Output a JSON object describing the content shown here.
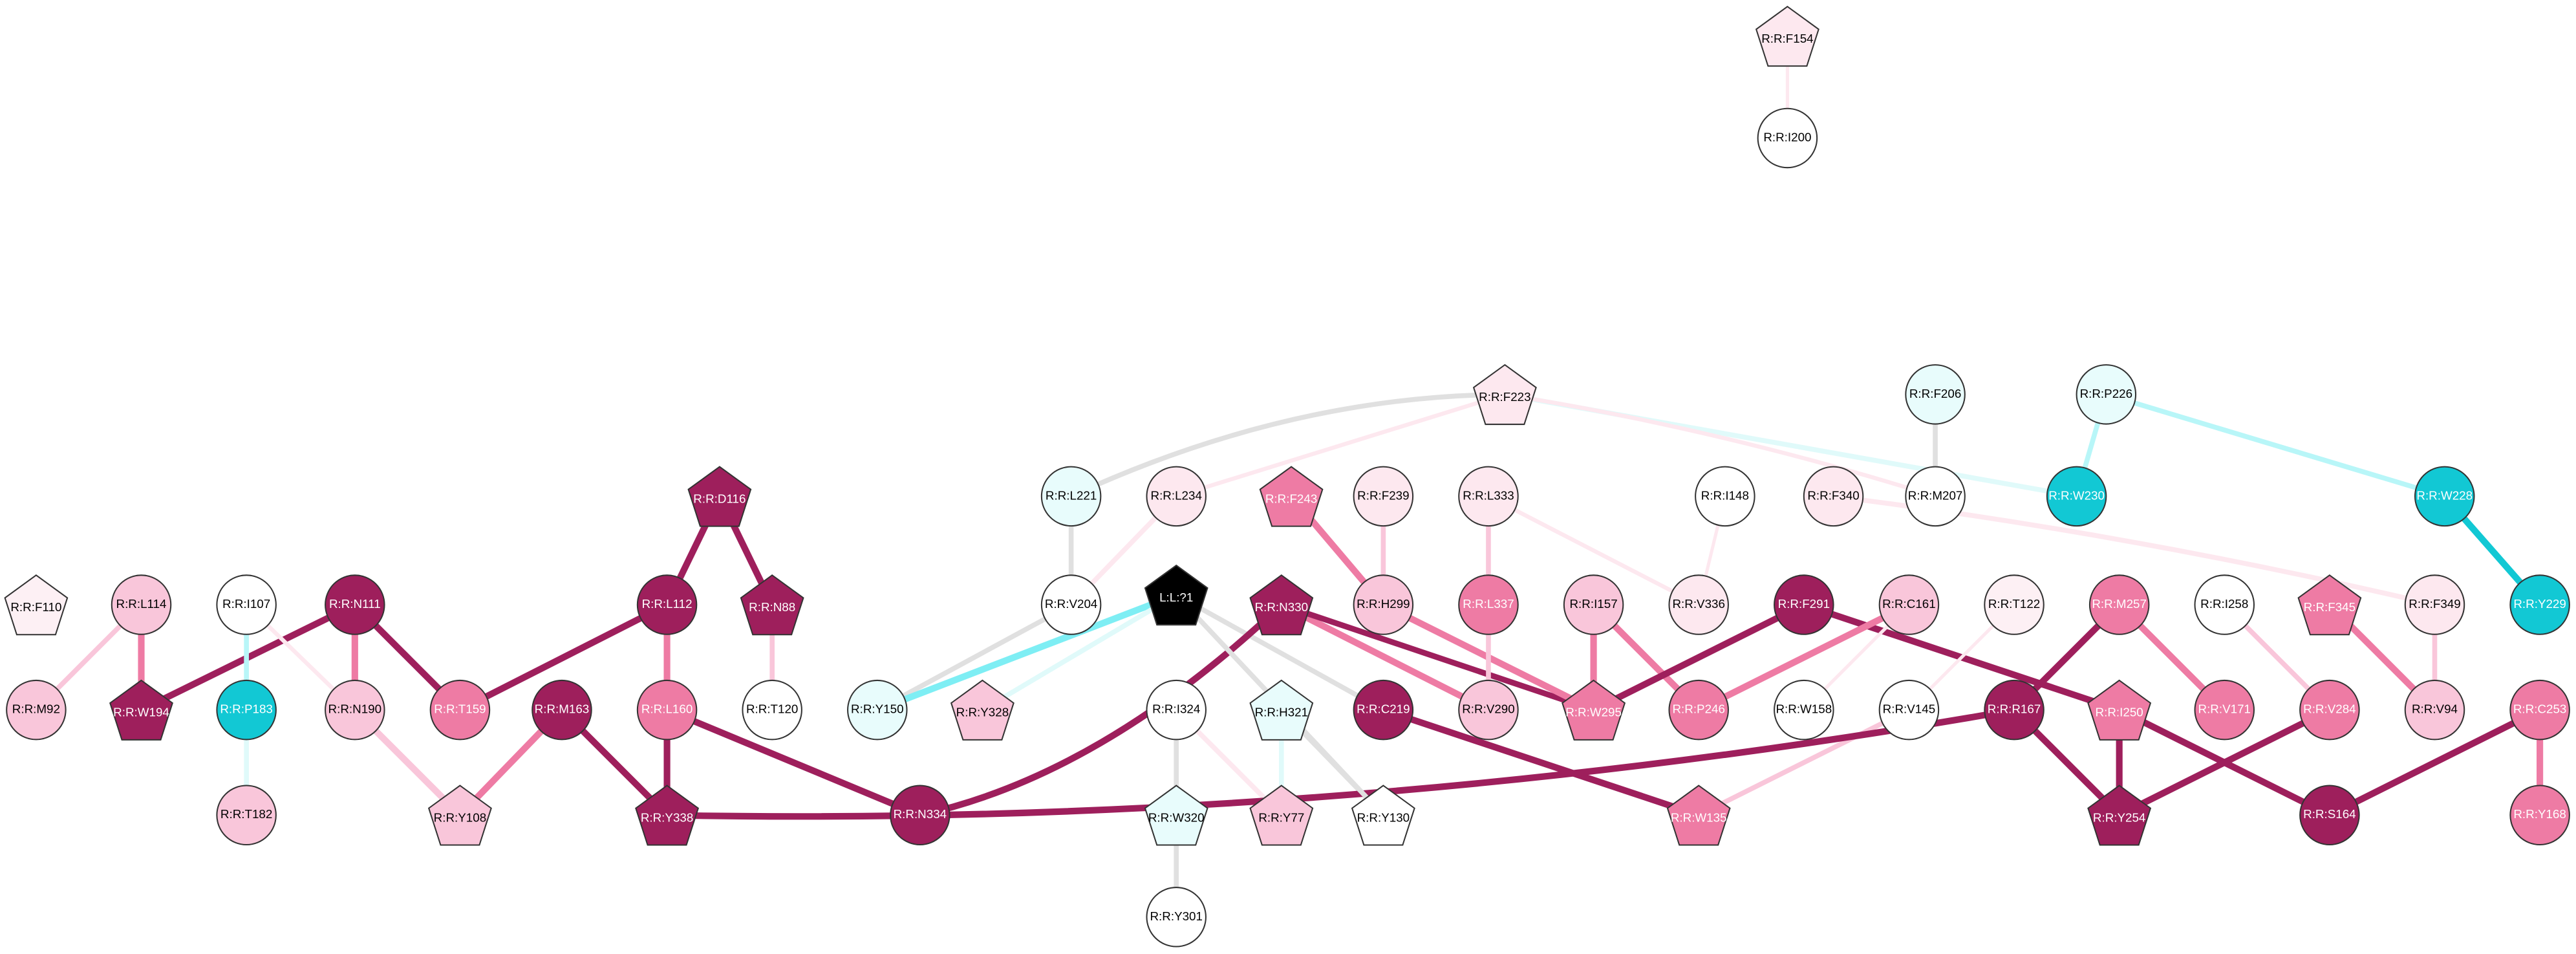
{
  "nodes": [
    {
      "label": "R:R:F154",
      "shape": "pentagon",
      "color": "#fde8ef"
    },
    {
      "label": "R:R:I200",
      "shape": "circle",
      "color": "#ffffff"
    },
    {
      "label": "R:R:F223",
      "shape": "pentagon",
      "color": "#fde8ef"
    },
    {
      "label": "R:R:F206",
      "shape": "circle",
      "color": "#e8fcfc"
    },
    {
      "label": "R:R:P226",
      "shape": "circle",
      "color": "#e8fcfc"
    },
    {
      "label": "R:R:L221",
      "shape": "circle",
      "color": "#e8fcfc"
    },
    {
      "label": "R:R:L234",
      "shape": "circle",
      "color": "#fde8ef"
    },
    {
      "label": "R:R:F243",
      "shape": "pentagon",
      "color": "#ee7ba4"
    },
    {
      "label": "R:R:F239",
      "shape": "circle",
      "color": "#fde8ef"
    },
    {
      "label": "R:R:L333",
      "shape": "circle",
      "color": "#fde8ef"
    },
    {
      "label": "R:R:I148",
      "shape": "circle",
      "color": "#ffffff"
    },
    {
      "label": "R:R:F340",
      "shape": "circle",
      "color": "#fde8ef"
    },
    {
      "label": "R:R:M207",
      "shape": "circle",
      "color": "#ffffff"
    },
    {
      "label": "R:R:W230",
      "shape": "circle",
      "color": "#12c8d4"
    },
    {
      "label": "R:R:W228",
      "shape": "circle",
      "color": "#12c8d4"
    },
    {
      "label": "R:R:D116",
      "shape": "pentagon",
      "color": "#9e1f5c"
    },
    {
      "label": "R:R:N111",
      "shape": "circle",
      "color": "#9e1f5c"
    },
    {
      "label": "R:R:L114",
      "shape": "circle",
      "color": "#f9c6da"
    },
    {
      "label": "R:R:I107",
      "shape": "circle",
      "color": "#ffffff"
    },
    {
      "label": "R:R:F110",
      "shape": "pentagon",
      "color": "#fdf0f4"
    },
    {
      "label": "R:R:L112",
      "shape": "circle",
      "color": "#9e1f5c"
    },
    {
      "label": "R:R:N88",
      "shape": "pentagon",
      "color": "#9e1f5c"
    },
    {
      "label": "R:R:V204",
      "shape": "circle",
      "color": "#ffffff"
    },
    {
      "label": "L:L:?1",
      "shape": "pentagon",
      "color": "#000000"
    },
    {
      "label": "R:R:N330",
      "shape": "pentagon",
      "color": "#9e1f5c"
    },
    {
      "label": "R:R:H299",
      "shape": "circle",
      "color": "#f9c6da"
    },
    {
      "label": "R:R:L337",
      "shape": "circle",
      "color": "#ee7ba4"
    },
    {
      "label": "R:R:I157",
      "shape": "circle",
      "color": "#f9c6da"
    },
    {
      "label": "R:R:V336",
      "shape": "circle",
      "color": "#fde8ef"
    },
    {
      "label": "R:R:F291",
      "shape": "circle",
      "color": "#9e1f5c"
    },
    {
      "label": "R:R:C161",
      "shape": "circle",
      "color": "#f9c6da"
    },
    {
      "label": "R:R:T122",
      "shape": "circle",
      "color": "#fdf0f4"
    },
    {
      "label": "R:R:M257",
      "shape": "circle",
      "color": "#ee7ba4"
    },
    {
      "label": "R:R:I258",
      "shape": "circle",
      "color": "#ffffff"
    },
    {
      "label": "R:R:F345",
      "shape": "pentagon",
      "color": "#ee7ba4"
    },
    {
      "label": "R:R:F349",
      "shape": "circle",
      "color": "#fde8ef"
    },
    {
      "label": "R:R:Y229",
      "shape": "circle",
      "color": "#12c8d4"
    },
    {
      "label": "R:R:M92",
      "shape": "circle",
      "color": "#f9c6da"
    },
    {
      "label": "R:R:W194",
      "shape": "pentagon",
      "color": "#9e1f5c"
    },
    {
      "label": "R:R:P183",
      "shape": "circle",
      "color": "#12c8d4"
    },
    {
      "label": "R:R:N190",
      "shape": "circle",
      "color": "#f9c6da"
    },
    {
      "label": "R:R:T159",
      "shape": "circle",
      "color": "#ee7ba4"
    },
    {
      "label": "R:R:M163",
      "shape": "circle",
      "color": "#9e1f5c"
    },
    {
      "label": "R:R:L160",
      "shape": "circle",
      "color": "#ee7ba4"
    },
    {
      "label": "R:R:T120",
      "shape": "circle",
      "color": "#ffffff"
    },
    {
      "label": "R:R:Y150",
      "shape": "circle",
      "color": "#e8fcfc"
    },
    {
      "label": "R:R:Y328",
      "shape": "pentagon",
      "color": "#f9c6da"
    },
    {
      "label": "R:R:I324",
      "shape": "circle",
      "color": "#ffffff"
    },
    {
      "label": "R:R:H321",
      "shape": "pentagon",
      "color": "#e8fcfc"
    },
    {
      "label": "R:R:C219",
      "shape": "circle",
      "color": "#9e1f5c"
    },
    {
      "label": "R:R:V290",
      "shape": "circle",
      "color": "#f9c6da"
    },
    {
      "label": "R:R:W295",
      "shape": "pentagon",
      "color": "#ee7ba4"
    },
    {
      "label": "R:R:P246",
      "shape": "circle",
      "color": "#ee7ba4"
    },
    {
      "label": "R:R:W158",
      "shape": "circle",
      "color": "#ffffff"
    },
    {
      "label": "R:R:V145",
      "shape": "circle",
      "color": "#ffffff"
    },
    {
      "label": "R:R:R167",
      "shape": "circle",
      "color": "#9e1f5c"
    },
    {
      "label": "R:R:I250",
      "shape": "pentagon",
      "color": "#ee7ba4"
    },
    {
      "label": "R:R:V171",
      "shape": "circle",
      "color": "#ee7ba4"
    },
    {
      "label": "R:R:V284",
      "shape": "circle",
      "color": "#ee7ba4"
    },
    {
      "label": "R:R:V94",
      "shape": "circle",
      "color": "#f9c6da"
    },
    {
      "label": "R:R:C253",
      "shape": "circle",
      "color": "#ee7ba4"
    },
    {
      "label": "R:R:T182",
      "shape": "circle",
      "color": "#f9c6da"
    },
    {
      "label": "R:R:Y108",
      "shape": "pentagon",
      "color": "#f9c6da"
    },
    {
      "label": "R:R:Y338",
      "shape": "pentagon",
      "color": "#9e1f5c"
    },
    {
      "label": "R:R:N334",
      "shape": "circle",
      "color": "#9e1f5c"
    },
    {
      "label": "R:R:W320",
      "shape": "pentagon",
      "color": "#e8fcfc"
    },
    {
      "label": "R:R:Y77",
      "shape": "pentagon",
      "color": "#f9c6da"
    },
    {
      "label": "R:R:Y130",
      "shape": "pentagon",
      "color": "#ffffff"
    },
    {
      "label": "R:R:W135",
      "shape": "pentagon",
      "color": "#ee7ba4"
    },
    {
      "label": "R:R:Y254",
      "shape": "pentagon",
      "color": "#9e1f5c"
    },
    {
      "label": "R:R:S164",
      "shape": "circle",
      "color": "#9e1f5c"
    },
    {
      "label": "R:R:Y168",
      "shape": "circle",
      "color": "#ee7ba4"
    },
    {
      "label": "R:R:Y301",
      "shape": "circle",
      "color": "#ffffff"
    }
  ]
}
